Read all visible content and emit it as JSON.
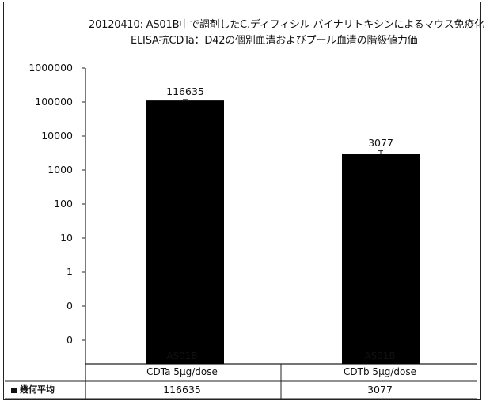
{
  "chart_data": {
    "type": "bar",
    "title": "20120410: AS01B中で調剤したC.ディフィシル バイナリトキシンによるマウス免疫化",
    "subtitle": "ELISA抗CDTa：D42の個別血清およびプール血清の階級値力価",
    "y_scale": "log",
    "y_tick_labels": [
      "1000000",
      "100000",
      "10000",
      "1000",
      "100",
      "10",
      "1",
      "0",
      "0"
    ],
    "categories": [
      {
        "adjuvant": "AS01B",
        "antigen": "CDTa 5μg/dose"
      },
      {
        "adjuvant": "AS01B",
        "antigen": "CDTb 5μg/dose"
      }
    ],
    "series": [
      {
        "name": "幾何平均",
        "values": [
          116635,
          3077
        ],
        "error_upper": [
          125000,
          3900
        ]
      }
    ],
    "data_labels": [
      "116635",
      "3077"
    ],
    "table_row": {
      "label": "幾何平均",
      "values": [
        "116635",
        "3077"
      ]
    },
    "grid": false,
    "bar_color": "#000000"
  }
}
